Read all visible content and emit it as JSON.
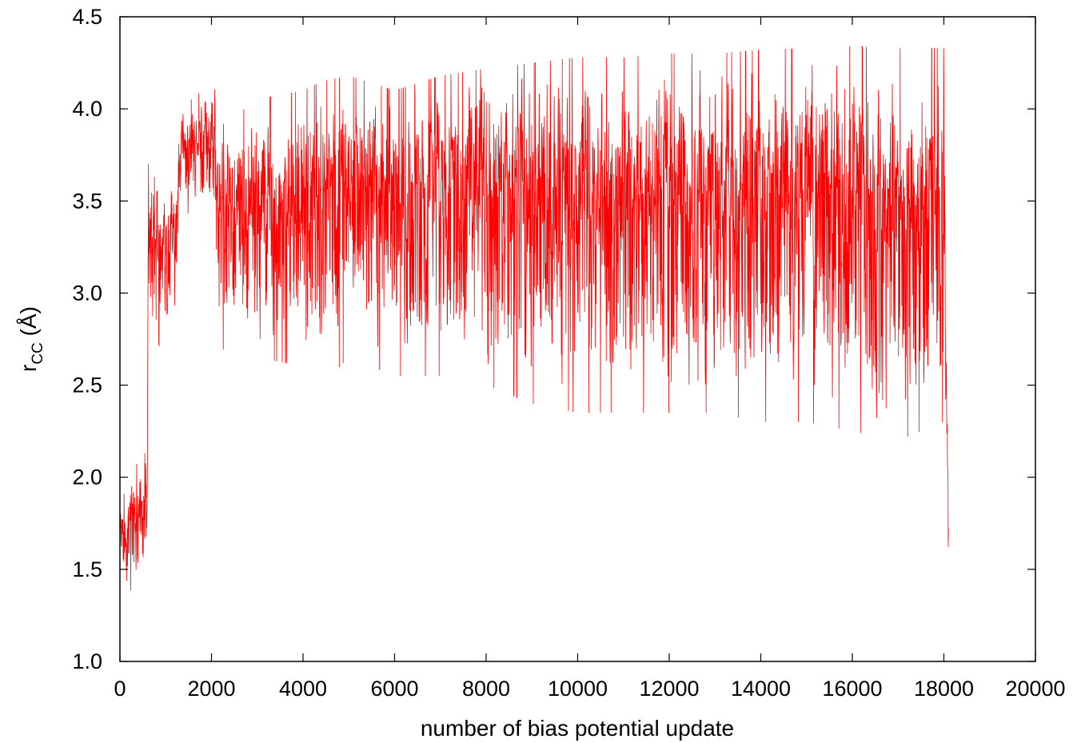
{
  "chart_data": {
    "type": "line",
    "xlabel": "number of bias potential update",
    "ylabel_main": "r",
    "ylabel_sub": "CC",
    "ylabel_unit": " (Å)",
    "xlim": [
      0,
      20000
    ],
    "ylim": [
      1.0,
      4.5
    ],
    "x_ticks": [
      "0",
      "2000",
      "4000",
      "6000",
      "8000",
      "10000",
      "12000",
      "14000",
      "16000",
      "18000",
      "20000"
    ],
    "y_ticks": [
      "1.0",
      "1.5",
      "2.0",
      "2.5",
      "3.0",
      "3.5",
      "4.0",
      "4.5"
    ],
    "grid": false,
    "legend": "none",
    "series": [
      {
        "color": "#ff0000",
        "x_start": 0,
        "x_end": 18100,
        "envelope": [
          {
            "x": 0,
            "lo": 1.4,
            "hi": 1.85
          },
          {
            "x": 300,
            "lo": 1.38,
            "hi": 2.05
          },
          {
            "x": 600,
            "lo": 1.38,
            "hi": 2.15
          },
          {
            "x": 620,
            "lo": 2.6,
            "hi": 3.87
          },
          {
            "x": 800,
            "lo": 2.7,
            "hi": 3.55
          },
          {
            "x": 1200,
            "lo": 2.8,
            "hi": 3.7
          },
          {
            "x": 1300,
            "lo": 3.45,
            "hi": 4.0
          },
          {
            "x": 1800,
            "lo": 3.4,
            "hi": 4.1
          },
          {
            "x": 2050,
            "lo": 3.4,
            "hi": 4.16
          },
          {
            "x": 2150,
            "lo": 2.7,
            "hi": 3.9
          },
          {
            "x": 3000,
            "lo": 2.65,
            "hi": 4.05
          },
          {
            "x": 4000,
            "lo": 2.6,
            "hi": 4.1
          },
          {
            "x": 4400,
            "lo": 2.5,
            "hi": 4.15
          },
          {
            "x": 5000,
            "lo": 2.65,
            "hi": 4.18
          },
          {
            "x": 6000,
            "lo": 2.55,
            "hi": 4.1
          },
          {
            "x": 7000,
            "lo": 2.55,
            "hi": 4.18
          },
          {
            "x": 8000,
            "lo": 2.5,
            "hi": 4.22
          },
          {
            "x": 9000,
            "lo": 2.4,
            "hi": 4.25
          },
          {
            "x": 10000,
            "lo": 2.35,
            "hi": 4.28
          },
          {
            "x": 11000,
            "lo": 2.35,
            "hi": 4.28
          },
          {
            "x": 12000,
            "lo": 2.35,
            "hi": 4.3
          },
          {
            "x": 13000,
            "lo": 2.35,
            "hi": 4.3
          },
          {
            "x": 14000,
            "lo": 2.3,
            "hi": 4.32
          },
          {
            "x": 15000,
            "lo": 2.3,
            "hi": 4.33
          },
          {
            "x": 16000,
            "lo": 2.25,
            "hi": 4.34
          },
          {
            "x": 17000,
            "lo": 2.2,
            "hi": 4.33
          },
          {
            "x": 18000,
            "lo": 2.3,
            "hi": 4.33
          },
          {
            "x": 18050,
            "lo": 2.2,
            "hi": 2.75
          },
          {
            "x": 18100,
            "lo": 1.38,
            "hi": 2.1
          }
        ]
      }
    ]
  }
}
